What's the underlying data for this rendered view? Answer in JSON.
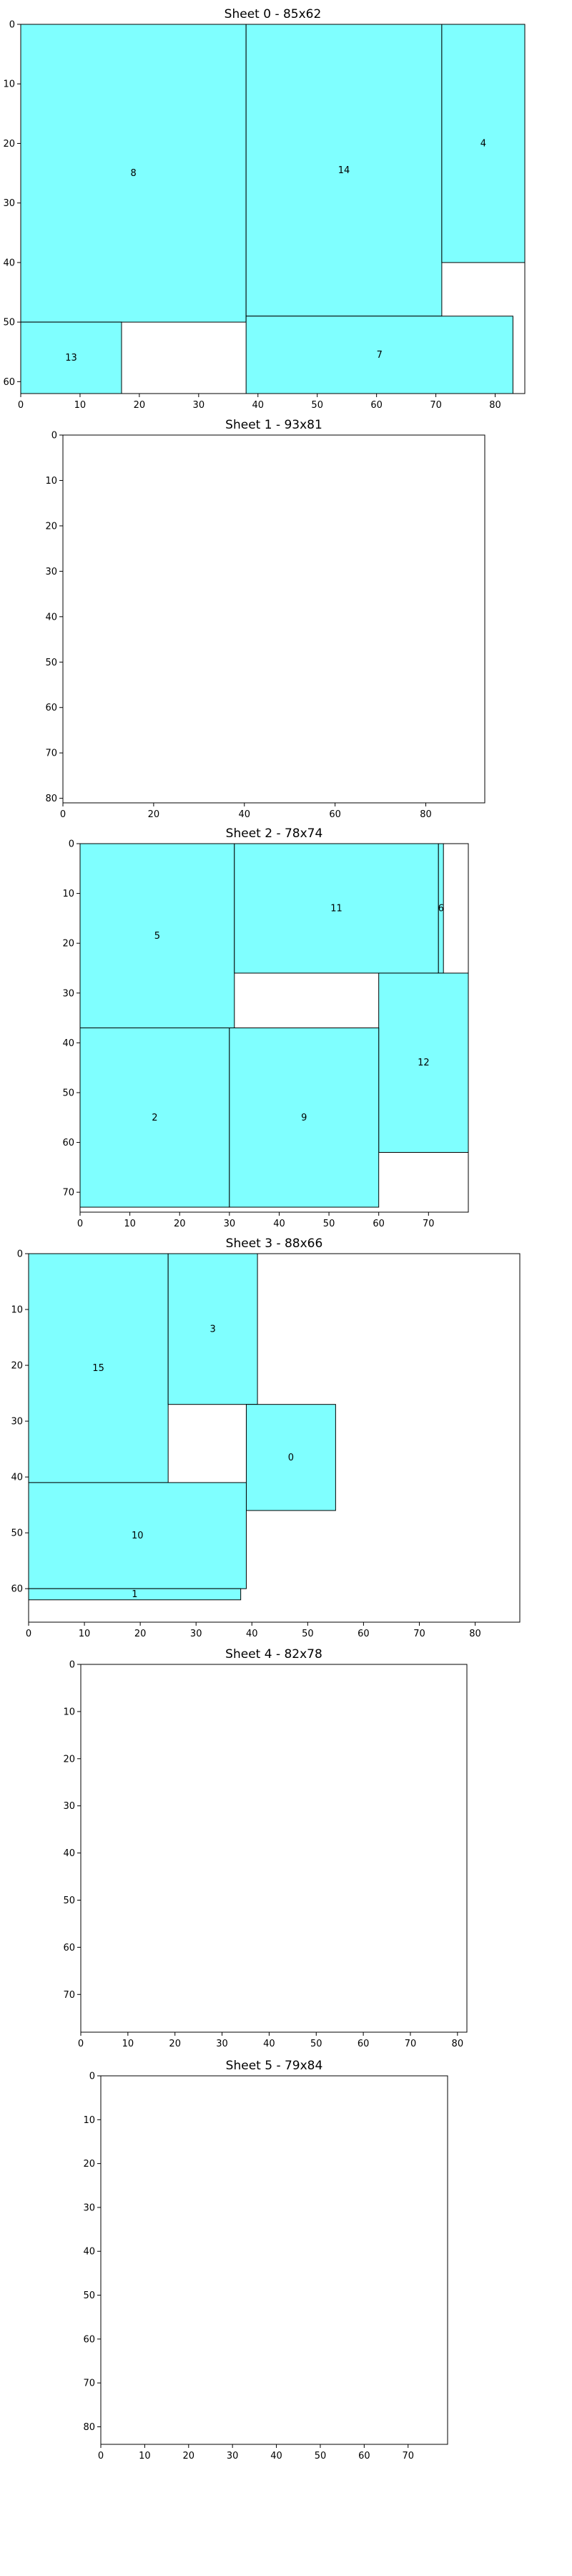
{
  "figure": {
    "colors": {
      "piece_fill": "#7fffff",
      "piece_stroke": "#000000",
      "axis": "#000000",
      "background": "#ffffff"
    }
  },
  "chart_data": [
    {
      "type": "packing-sheet",
      "title": "Sheet 0 - 85x62",
      "sheet": {
        "width": 85,
        "height": 62
      },
      "xticks": [
        0,
        10,
        20,
        30,
        40,
        50,
        60,
        70,
        80
      ],
      "yticks": [
        0,
        10,
        20,
        30,
        40,
        50,
        60
      ],
      "pieces": [
        {
          "label": "8",
          "x": 0,
          "y": 0,
          "w": 38,
          "h": 50
        },
        {
          "label": "14",
          "x": 38,
          "y": 0,
          "w": 33,
          "h": 49
        },
        {
          "label": "4",
          "x": 71,
          "y": 0,
          "w": 14,
          "h": 40
        },
        {
          "label": "13",
          "x": 0,
          "y": 50,
          "w": 17,
          "h": 12
        },
        {
          "label": "7",
          "x": 38,
          "y": 49,
          "w": 45,
          "h": 13
        }
      ]
    },
    {
      "type": "packing-sheet",
      "title": "Sheet 1 - 93x81",
      "sheet": {
        "width": 93,
        "height": 81
      },
      "xticks": [
        0,
        20,
        40,
        60,
        80
      ],
      "yticks": [
        0,
        10,
        20,
        30,
        40,
        50,
        60,
        70,
        80
      ],
      "pieces": []
    },
    {
      "type": "packing-sheet",
      "title": "Sheet 2 - 78x74",
      "sheet": {
        "width": 78,
        "height": 74
      },
      "xticks": [
        0,
        10,
        20,
        30,
        40,
        50,
        60,
        70
      ],
      "yticks": [
        0,
        10,
        20,
        30,
        40,
        50,
        60,
        70
      ],
      "pieces": [
        {
          "label": "5",
          "x": 0,
          "y": 0,
          "w": 31,
          "h": 37
        },
        {
          "label": "11",
          "x": 31,
          "y": 0,
          "w": 41,
          "h": 26
        },
        {
          "label": "6",
          "x": 72,
          "y": 0,
          "w": 1,
          "h": 26
        },
        {
          "label": "12",
          "x": 60,
          "y": 26,
          "w": 18,
          "h": 36
        },
        {
          "label": "2",
          "x": 0,
          "y": 37,
          "w": 30,
          "h": 36
        },
        {
          "label": "9",
          "x": 30,
          "y": 37,
          "w": 30,
          "h": 36
        }
      ]
    },
    {
      "type": "packing-sheet",
      "title": "Sheet 3 - 88x66",
      "sheet": {
        "width": 88,
        "height": 66
      },
      "xticks": [
        0,
        10,
        20,
        30,
        40,
        50,
        60,
        70,
        80
      ],
      "yticks": [
        0,
        10,
        20,
        30,
        40,
        50,
        60
      ],
      "pieces": [
        {
          "label": "15",
          "x": 0,
          "y": 0,
          "w": 25,
          "h": 41
        },
        {
          "label": "3",
          "x": 25,
          "y": 0,
          "w": 16,
          "h": 27
        },
        {
          "label": "0",
          "x": 39,
          "y": 27,
          "w": 16,
          "h": 19
        },
        {
          "label": "10",
          "x": 0,
          "y": 41,
          "w": 39,
          "h": 19
        },
        {
          "label": "1",
          "x": 0,
          "y": 60,
          "w": 38,
          "h": 2
        }
      ]
    },
    {
      "type": "packing-sheet",
      "title": "Sheet 4 - 82x78",
      "sheet": {
        "width": 82,
        "height": 78
      },
      "xticks": [
        0,
        10,
        20,
        30,
        40,
        50,
        60,
        70,
        80
      ],
      "yticks": [
        0,
        10,
        20,
        30,
        40,
        50,
        60,
        70
      ],
      "pieces": []
    },
    {
      "type": "packing-sheet",
      "title": "Sheet 5 - 79x84",
      "sheet": {
        "width": 79,
        "height": 84
      },
      "xticks": [
        0,
        10,
        20,
        30,
        40,
        50,
        60,
        70
      ],
      "yticks": [
        0,
        10,
        20,
        30,
        40,
        50,
        60,
        70,
        80
      ],
      "pieces": []
    }
  ]
}
